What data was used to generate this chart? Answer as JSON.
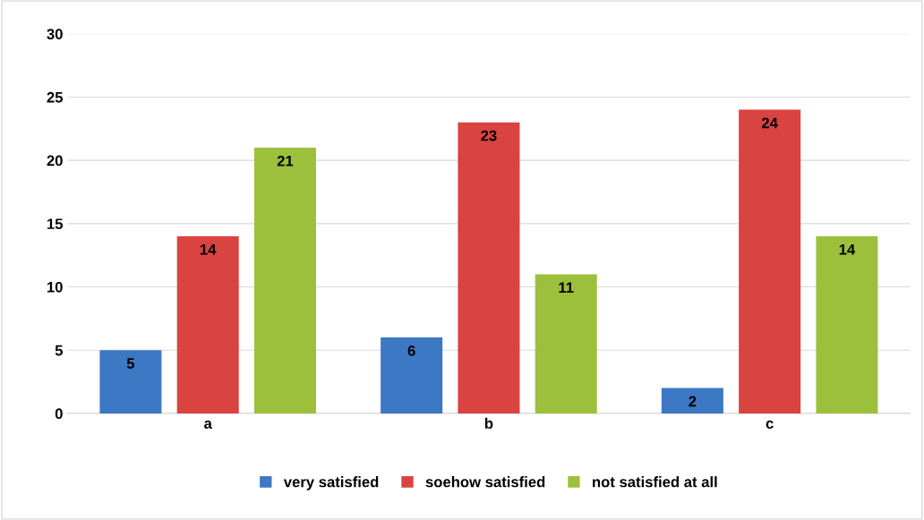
{
  "chart_data": {
    "type": "bar",
    "categories": [
      "a",
      "b",
      "c"
    ],
    "series": [
      {
        "name": "very satisfied",
        "color": "#3c78c3",
        "values": [
          5,
          6,
          2
        ]
      },
      {
        "name": "soehow satisfied",
        "color": "#d94340",
        "values": [
          14,
          23,
          24
        ]
      },
      {
        "name": "not satisfied at all",
        "color": "#9dc03c",
        "values": [
          21,
          11,
          14
        ]
      }
    ],
    "ylim": [
      0,
      30
    ],
    "yticks": [
      0,
      5,
      10,
      15,
      20,
      25,
      30
    ],
    "grid": "y",
    "legend": "bottom",
    "data_labels": true
  }
}
